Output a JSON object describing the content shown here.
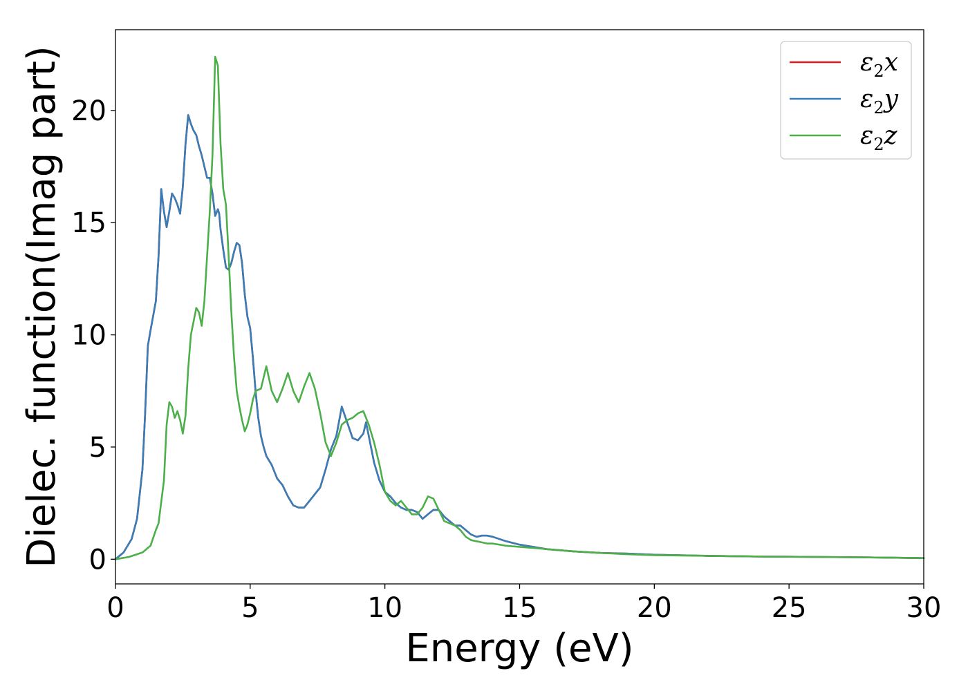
{
  "chart_data": {
    "type": "line",
    "title": "",
    "xlabel": "Energy (eV)",
    "ylabel": "Dielec. function(Imag part)",
    "xlim": [
      0,
      30
    ],
    "ylim": [
      -1.1,
      23.6
    ],
    "xticks": [
      0,
      5,
      10,
      15,
      20,
      25,
      30
    ],
    "yticks": [
      0,
      5,
      10,
      15,
      20
    ],
    "grid": false,
    "legend_position": "top-right",
    "colors": {
      "x": "#e41a1c",
      "y": "#377eb8",
      "z": "#4daf4a",
      "axis": "#000000",
      "legend_border": "#cccccc"
    },
    "series": [
      {
        "key": "x",
        "name": "ε₂x",
        "legend_base": "ε",
        "legend_sub": "2",
        "legend_suffix": "x",
        "color": "#e41a1c",
        "x": [
          0,
          0.3,
          0.6,
          0.8,
          1.0,
          1.1,
          1.2,
          1.3,
          1.5,
          1.6,
          1.7,
          1.8,
          1.9,
          2.0,
          2.1,
          2.2,
          2.3,
          2.4,
          2.5,
          2.6,
          2.7,
          2.8,
          2.9,
          3.0,
          3.1,
          3.2,
          3.3,
          3.4,
          3.5,
          3.6,
          3.7,
          3.8,
          3.85,
          3.9,
          4.0,
          4.1,
          4.2,
          4.3,
          4.4,
          4.5,
          4.6,
          4.7,
          4.8,
          4.9,
          5.0,
          5.1,
          5.2,
          5.3,
          5.4,
          5.5,
          5.6,
          5.7,
          5.8,
          5.9,
          6.0,
          6.2,
          6.4,
          6.6,
          6.8,
          7.0,
          7.2,
          7.4,
          7.6,
          7.8,
          8.0,
          8.2,
          8.4,
          8.6,
          8.8,
          9.0,
          9.2,
          9.3,
          9.4,
          9.6,
          9.8,
          10.0,
          10.2,
          10.4,
          10.6,
          10.8,
          11.0,
          11.2,
          11.4,
          11.6,
          11.8,
          12.0,
          12.2,
          12.4,
          12.6,
          12.8,
          13.0,
          13.2,
          13.4,
          13.6,
          13.8,
          14.0,
          14.5,
          15.0,
          15.5,
          16.0,
          17.0,
          18.0,
          19.0,
          20.0,
          22.0,
          24.0,
          26.0,
          28.0,
          30.0
        ],
        "values": [
          0.0,
          0.3,
          0.9,
          1.8,
          4.0,
          6.5,
          9.5,
          10.2,
          11.5,
          13.5,
          16.5,
          15.5,
          14.8,
          15.5,
          16.3,
          16.1,
          15.8,
          15.4,
          16.6,
          18.5,
          19.8,
          19.4,
          19.1,
          18.9,
          18.4,
          18.0,
          17.5,
          17.0,
          17.0,
          16.3,
          15.3,
          15.6,
          15.4,
          14.7,
          13.8,
          13.0,
          12.9,
          13.2,
          13.7,
          14.1,
          14.0,
          13.2,
          11.8,
          10.8,
          10.3,
          9.0,
          7.5,
          6.3,
          5.5,
          5.0,
          4.6,
          4.4,
          4.2,
          3.9,
          3.6,
          3.3,
          2.8,
          2.4,
          2.3,
          2.3,
          2.6,
          2.9,
          3.2,
          4.0,
          4.9,
          5.5,
          6.8,
          6.1,
          5.4,
          5.3,
          5.6,
          6.1,
          5.5,
          4.3,
          3.5,
          3.0,
          2.8,
          2.5,
          2.3,
          2.2,
          2.2,
          2.1,
          1.8,
          2.0,
          2.2,
          2.2,
          1.9,
          1.7,
          1.5,
          1.5,
          1.3,
          1.1,
          1.0,
          1.05,
          1.05,
          1.0,
          0.8,
          0.65,
          0.55,
          0.45,
          0.35,
          0.28,
          0.25,
          0.2,
          0.15,
          0.12,
          0.1,
          0.08,
          0.05
        ]
      },
      {
        "key": "y",
        "name": "ε₂y",
        "legend_base": "ε",
        "legend_sub": "2",
        "legend_suffix": "y",
        "color": "#377eb8",
        "x": [
          0,
          0.3,
          0.6,
          0.8,
          1.0,
          1.1,
          1.2,
          1.3,
          1.5,
          1.6,
          1.7,
          1.8,
          1.9,
          2.0,
          2.1,
          2.2,
          2.3,
          2.4,
          2.5,
          2.6,
          2.7,
          2.8,
          2.9,
          3.0,
          3.1,
          3.2,
          3.3,
          3.4,
          3.5,
          3.6,
          3.7,
          3.8,
          3.85,
          3.9,
          4.0,
          4.1,
          4.2,
          4.3,
          4.4,
          4.5,
          4.6,
          4.7,
          4.8,
          4.9,
          5.0,
          5.1,
          5.2,
          5.3,
          5.4,
          5.5,
          5.6,
          5.7,
          5.8,
          5.9,
          6.0,
          6.2,
          6.4,
          6.6,
          6.8,
          7.0,
          7.2,
          7.4,
          7.6,
          7.8,
          8.0,
          8.2,
          8.4,
          8.6,
          8.8,
          9.0,
          9.2,
          9.3,
          9.4,
          9.6,
          9.8,
          10.0,
          10.2,
          10.4,
          10.6,
          10.8,
          11.0,
          11.2,
          11.4,
          11.6,
          11.8,
          12.0,
          12.2,
          12.4,
          12.6,
          12.8,
          13.0,
          13.2,
          13.4,
          13.6,
          13.8,
          14.0,
          14.5,
          15.0,
          15.5,
          16.0,
          17.0,
          18.0,
          19.0,
          20.0,
          22.0,
          24.0,
          26.0,
          28.0,
          30.0
        ],
        "values": [
          0.0,
          0.3,
          0.9,
          1.8,
          4.0,
          6.5,
          9.5,
          10.2,
          11.5,
          13.5,
          16.5,
          15.5,
          14.8,
          15.5,
          16.3,
          16.1,
          15.8,
          15.4,
          16.6,
          18.5,
          19.8,
          19.4,
          19.1,
          18.9,
          18.4,
          18.0,
          17.5,
          17.0,
          17.0,
          16.3,
          15.3,
          15.6,
          15.4,
          14.7,
          13.8,
          13.0,
          12.9,
          13.2,
          13.7,
          14.1,
          14.0,
          13.2,
          11.8,
          10.8,
          10.3,
          9.0,
          7.5,
          6.3,
          5.5,
          5.0,
          4.6,
          4.4,
          4.2,
          3.9,
          3.6,
          3.3,
          2.8,
          2.4,
          2.3,
          2.3,
          2.6,
          2.9,
          3.2,
          4.0,
          4.9,
          5.5,
          6.8,
          6.1,
          5.4,
          5.3,
          5.6,
          6.1,
          5.5,
          4.3,
          3.5,
          3.0,
          2.8,
          2.5,
          2.3,
          2.2,
          2.2,
          2.1,
          1.8,
          2.0,
          2.2,
          2.2,
          1.9,
          1.7,
          1.5,
          1.5,
          1.3,
          1.1,
          1.0,
          1.05,
          1.05,
          1.0,
          0.8,
          0.65,
          0.55,
          0.45,
          0.35,
          0.28,
          0.25,
          0.2,
          0.15,
          0.12,
          0.1,
          0.08,
          0.05
        ]
      },
      {
        "key": "z",
        "name": "ε₂z",
        "legend_base": "ε",
        "legend_sub": "2",
        "legend_suffix": "z",
        "color": "#4daf4a",
        "x": [
          0,
          0.5,
          1.0,
          1.3,
          1.5,
          1.6,
          1.8,
          1.9,
          2.0,
          2.1,
          2.2,
          2.3,
          2.4,
          2.5,
          2.6,
          2.7,
          2.8,
          3.0,
          3.1,
          3.2,
          3.3,
          3.4,
          3.5,
          3.6,
          3.7,
          3.8,
          3.9,
          4.0,
          4.1,
          4.2,
          4.3,
          4.4,
          4.5,
          4.6,
          4.7,
          4.8,
          4.9,
          5.0,
          5.1,
          5.2,
          5.4,
          5.6,
          5.8,
          6.0,
          6.2,
          6.4,
          6.6,
          6.8,
          7.0,
          7.2,
          7.4,
          7.6,
          7.8,
          8.0,
          8.2,
          8.4,
          8.6,
          8.8,
          9.0,
          9.2,
          9.4,
          9.6,
          9.8,
          10.0,
          10.2,
          10.4,
          10.6,
          10.8,
          11.0,
          11.2,
          11.4,
          11.6,
          11.8,
          12.0,
          12.2,
          12.4,
          12.6,
          12.8,
          13.0,
          13.2,
          13.4,
          13.6,
          13.8,
          14.0,
          14.5,
          15.0,
          15.5,
          16.0,
          17.0,
          18.0,
          19.0,
          20.0,
          22.0,
          24.0,
          26.0,
          28.0,
          30.0
        ],
        "values": [
          0.0,
          0.1,
          0.3,
          0.6,
          1.3,
          1.6,
          3.5,
          6.0,
          7.0,
          6.8,
          6.3,
          6.6,
          6.2,
          5.6,
          6.4,
          8.5,
          10.0,
          11.2,
          11.0,
          10.4,
          11.5,
          13.5,
          15.5,
          18.0,
          22.4,
          22.0,
          18.5,
          16.5,
          15.8,
          13.5,
          11.0,
          9.0,
          7.5,
          6.8,
          6.2,
          5.7,
          6.0,
          6.5,
          7.1,
          7.5,
          7.6,
          8.6,
          7.5,
          7.0,
          7.6,
          8.3,
          7.5,
          7.0,
          7.7,
          8.3,
          7.6,
          6.5,
          5.2,
          4.6,
          5.2,
          6.0,
          6.2,
          6.3,
          6.5,
          6.6,
          6.0,
          5.2,
          4.2,
          3.0,
          2.6,
          2.4,
          2.6,
          2.3,
          2.0,
          2.0,
          2.3,
          2.8,
          2.7,
          2.2,
          1.7,
          1.6,
          1.5,
          1.3,
          1.0,
          0.85,
          0.8,
          0.75,
          0.7,
          0.7,
          0.6,
          0.55,
          0.5,
          0.45,
          0.35,
          0.28,
          0.22,
          0.18,
          0.15,
          0.12,
          0.1,
          0.08,
          0.05
        ]
      }
    ]
  }
}
